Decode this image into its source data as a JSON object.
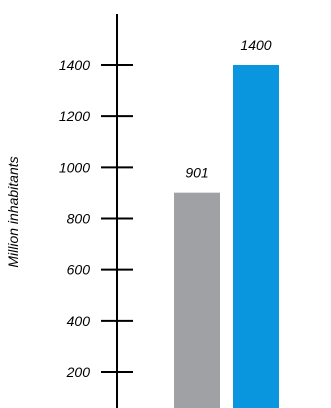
{
  "chart_data": {
    "type": "bar",
    "title": "",
    "xlabel": "",
    "ylabel": "Million inhabitants",
    "ylim": [
      100,
      1600
    ],
    "yticks": [
      200,
      400,
      600,
      800,
      1000,
      1200,
      1400
    ],
    "grid": false,
    "legend": "none",
    "categories": [
      "",
      ""
    ],
    "values": [
      901,
      1400
    ],
    "data_labels": [
      "901",
      "1400"
    ],
    "colors": [
      "#a0a1a4",
      "#0a96de"
    ]
  }
}
